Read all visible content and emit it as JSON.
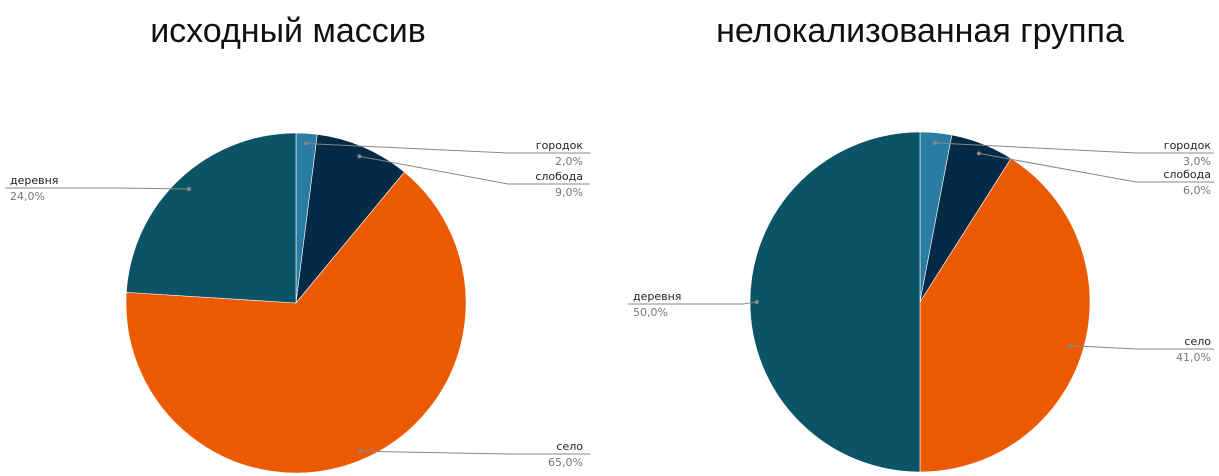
{
  "chart_data": [
    {
      "type": "pie",
      "title": "исходный массив",
      "slices": [
        {
          "label": "городок",
          "value": 2.0,
          "display": "2,0%",
          "color": "#2a7ca3"
        },
        {
          "label": "слобода",
          "value": 9.0,
          "display": "9,0%",
          "color": "#042a45"
        },
        {
          "label": "село",
          "value": 65.0,
          "display": "65,0%",
          "color": "#eb5a00"
        },
        {
          "label": "деревня",
          "value": 24.0,
          "display": "24,0%",
          "color": "#0b5468"
        }
      ],
      "legend": "callout labels"
    },
    {
      "type": "pie",
      "title": "нелокализованная группа",
      "slices": [
        {
          "label": "городок",
          "value": 3.0,
          "display": "3,0%",
          "color": "#2a7ca3"
        },
        {
          "label": "слобода",
          "value": 6.0,
          "display": "6,0%",
          "color": "#042a45"
        },
        {
          "label": "село",
          "value": 41.0,
          "display": "41,0%",
          "color": "#eb5a00"
        },
        {
          "label": "деревня",
          "value": 50.0,
          "display": "50,0%",
          "color": "#0b5468"
        }
      ],
      "legend": "callout labels"
    }
  ]
}
